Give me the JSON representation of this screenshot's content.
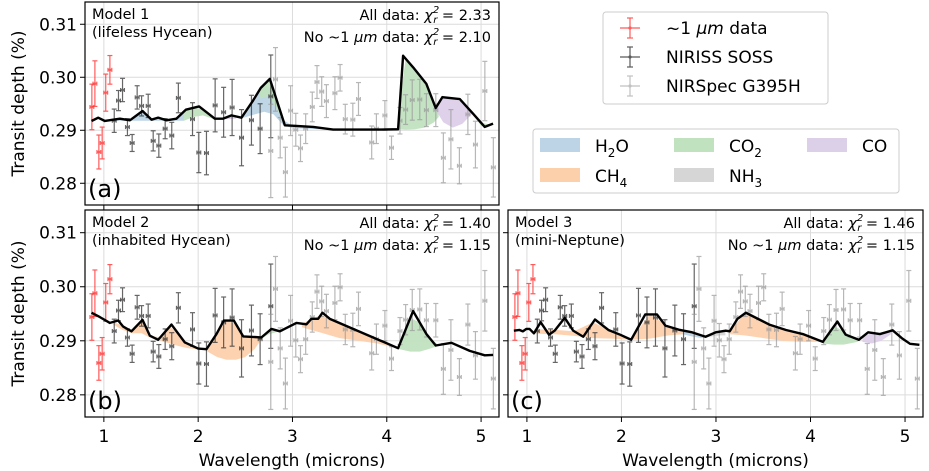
{
  "chart_data": {
    "type": "scatter",
    "xlabel": "Wavelength (microns)",
    "ylabel": "Transit depth (%)",
    "xlim": [
      0.8,
      5.19
    ],
    "ylim": [
      0.2759,
      0.3142
    ],
    "xticks": [
      "1",
      "2",
      "3",
      "4",
      "5"
    ],
    "yticks": [
      "0.28",
      "0.29",
      "0.30",
      "0.31"
    ],
    "grid": true,
    "stat_symbol": "χ",
    "stat_sub": "r",
    "stat_sup": "2",
    "stat_eq": " = ",
    "stat_all_prefix": "All data: ",
    "stat_no1_prefix": "No ~1 ",
    "stat_no1_unit": "μm",
    "stat_no1_suffix": " data: ",
    "colors": {
      "one_micron": "#ff3333",
      "niriss": "#333333",
      "nirspec": "#999999",
      "model": "#000000",
      "H2O": "#bcd4e6",
      "CH4": "#fdd0ac",
      "CO2": "#c0e2bf",
      "NH3": "#d6d6d6",
      "CO": "#dccfe8"
    },
    "legend_data": {
      "placement": "top-right",
      "items": [
        {
          "key": "one_micron",
          "label_pre": "~1 ",
          "label_unit": "μm",
          "label_post": " data"
        },
        {
          "key": "niriss",
          "label_pre": "NIRISS SOSS",
          "label_unit": "",
          "label_post": ""
        },
        {
          "key": "nirspec",
          "label_pre": "NIRSpec G395H",
          "label_unit": "",
          "label_post": ""
        }
      ]
    },
    "legend_species": {
      "placement": "right",
      "items": [
        {
          "key": "H2O",
          "base": "H",
          "sub": "2",
          "rest": "O"
        },
        {
          "key": "CO2",
          "base": "CO",
          "sub": "2",
          "rest": ""
        },
        {
          "key": "CO",
          "base": "CO",
          "sub": "",
          "rest": ""
        },
        {
          "key": "CH4",
          "base": "CH",
          "sub": "4",
          "rest": ""
        },
        {
          "key": "NH3",
          "base": "NH",
          "sub": "3",
          "rest": ""
        }
      ]
    },
    "xerr": 0.02,
    "observations": {
      "one_micron": {
        "x": [
          0.873,
          0.905,
          0.947,
          0.982,
          1.02,
          1.064
        ],
        "y": [
          0.2944,
          0.2988,
          0.2859,
          0.2876,
          0.2971,
          0.3014
        ],
        "yerr": [
          0.0043,
          0.0043,
          0.0032,
          0.003,
          0.0035,
          0.0027
        ]
      },
      "niriss": {
        "x": [
          1.11,
          1.155,
          1.198,
          1.25,
          1.3,
          1.353,
          1.4,
          1.47,
          1.523,
          1.583,
          1.65,
          1.72,
          1.79,
          1.94,
          2.007,
          2.088,
          2.18,
          2.27,
          2.36,
          2.46,
          2.565,
          2.657,
          2.77
        ],
        "y": [
          0.2918,
          0.2956,
          0.2976,
          0.2906,
          0.2876,
          0.2962,
          0.2946,
          0.2946,
          0.288,
          0.2871,
          0.2903,
          0.289,
          0.2961,
          0.2921,
          0.2858,
          0.2857,
          0.2947,
          0.2934,
          0.2943,
          0.2886,
          0.2919,
          0.2903,
          0.2964
        ],
        "yerr": [
          0.0022,
          0.0019,
          0.0022,
          0.0016,
          0.0016,
          0.0022,
          0.0019,
          0.0022,
          0.0019,
          0.0022,
          0.0019,
          0.0025,
          0.0028,
          0.0031,
          0.0038,
          0.0041,
          0.005,
          0.0047,
          0.0053,
          0.0053,
          0.0047,
          0.0047,
          0.0078
        ]
      },
      "nirspec": {
        "x": [
          2.77,
          2.82,
          2.87,
          2.925,
          2.98,
          3.035,
          3.085,
          3.14,
          3.21,
          3.26,
          3.31,
          3.36,
          3.45,
          3.505,
          3.56,
          3.64,
          3.7,
          3.84,
          3.89,
          3.98,
          4.05,
          4.14,
          4.2,
          4.27,
          4.35,
          4.42,
          4.52,
          4.6,
          4.68,
          4.77,
          4.86,
          4.94,
          5.04,
          5.13
        ],
        "y": [
          0.2861,
          0.2996,
          0.2886,
          0.2821,
          0.2937,
          0.2901,
          0.2866,
          0.2903,
          0.2944,
          0.2991,
          0.2973,
          0.2955,
          0.297,
          0.2999,
          0.2921,
          0.292,
          0.2959,
          0.2877,
          0.2903,
          0.2928,
          0.2867,
          0.2918,
          0.2939,
          0.2957,
          0.2958,
          0.2938,
          0.2938,
          0.2848,
          0.2883,
          0.2833,
          0.293,
          0.2873,
          0.2974,
          0.283
        ],
        "yerr": [
          0.0088,
          0.006,
          0.0038,
          0.0047,
          0.0047,
          0.0031,
          0.0025,
          0.0028,
          0.0028,
          0.0031,
          0.0028,
          0.0031,
          0.0031,
          0.0025,
          0.0028,
          0.0031,
          0.0031,
          0.0031,
          0.0028,
          0.0028,
          0.0022,
          0.0025,
          0.0028,
          0.0038,
          0.0038,
          0.0031,
          0.0031,
          0.0047,
          0.0056,
          0.0034,
          0.0038,
          0.0044,
          0.0056,
          0.0056
        ]
      }
    },
    "panels": [
      {
        "letter": "(a)",
        "title": "Model 1",
        "subtitle": "(lifeless Hycean)",
        "chi_all": "2.33",
        "chi_no1": "2.10",
        "model": {
          "x": [
            0.869,
            0.94,
            1.011,
            1.099,
            1.17,
            1.276,
            1.41,
            1.505,
            1.576,
            1.664,
            1.77,
            1.869,
            2.01,
            2.177,
            2.265,
            2.353,
            2.459,
            2.583,
            2.664,
            2.76,
            2.919,
            3.042,
            3.219,
            3.431,
            3.749,
            3.926,
            4.12,
            4.173,
            4.279,
            4.42,
            4.519,
            4.59,
            4.774,
            4.915,
            5.039,
            5.127
          ],
          "y": [
            0.29175,
            0.29238,
            0.29175,
            0.292,
            0.29219,
            0.29188,
            0.29363,
            0.292,
            0.29238,
            0.29188,
            0.29219,
            0.29388,
            0.2945,
            0.29219,
            0.29219,
            0.29281,
            0.29238,
            0.29563,
            0.298,
            0.29969,
            0.29094,
            0.29081,
            0.29063,
            0.29013,
            0.29013,
            0.29013,
            0.29019,
            0.30406,
            0.30188,
            0.29875,
            0.29419,
            0.29625,
            0.29588,
            0.29313,
            0.29063,
            0.29125
          ]
        },
        "fills": [
          {
            "species": "H2O",
            "x": [
              1.08,
              1.2,
              1.3,
              1.41,
              1.5,
              1.6,
              1.75,
              1.85
            ],
            "lower": [
              0.2918,
              0.2918,
              0.2918,
              0.2918,
              0.2918,
              0.2918,
              0.2918,
              0.2918
            ]
          },
          {
            "species": "CO2",
            "x": [
              1.85,
              1.95,
              2.05,
              2.15,
              2.2
            ],
            "lower": [
              0.2918,
              0.2925,
              0.2928,
              0.2922,
              0.2921
            ]
          },
          {
            "species": "CO",
            "x": [
              2.25,
              2.32,
              2.4
            ],
            "lower": [
              0.2921,
              0.2921,
              0.2922
            ]
          },
          {
            "species": "H2O",
            "x": [
              2.45,
              2.6,
              2.7,
              2.8,
              2.9,
              3.0,
              3.3
            ],
            "lower": [
              0.2922,
              0.293,
              0.2935,
              0.293,
              0.291,
              0.2904,
              0.2902
            ]
          },
          {
            "species": "CO2",
            "x": [
              2.65,
              2.75,
              2.85,
              2.92
            ],
            "lower": [
              0.296,
              0.2965,
              0.2935,
              0.291
            ]
          },
          {
            "species": "CO2",
            "x": [
              4.14,
              4.2,
              4.3,
              4.4,
              4.5,
              4.55
            ],
            "lower": [
              0.2902,
              0.2901,
              0.2902,
              0.2905,
              0.2915,
              0.2925
            ]
          },
          {
            "species": "CO",
            "x": [
              4.52,
              4.6,
              4.7,
              4.8,
              4.9
            ],
            "lower": [
              0.2938,
              0.2915,
              0.2905,
              0.2912,
              0.293
            ]
          },
          {
            "species": "CO2",
            "x": [
              4.92,
              5.0,
              5.1
            ],
            "lower": [
              0.2929,
              0.2908,
              0.2908
            ]
          }
        ]
      },
      {
        "letter": "(b)",
        "title": "Model 2",
        "subtitle": "(inhabited Hycean)",
        "chi_all": "1.40",
        "chi_no1": "1.15",
        "model": {
          "x": [
            0.869,
            0.958,
            1.064,
            1.152,
            1.205,
            1.293,
            1.41,
            1.488,
            1.576,
            1.717,
            1.859,
            2.0,
            2.088,
            2.194,
            2.272,
            2.378,
            2.477,
            2.671,
            2.777,
            2.866,
            3.042,
            3.148,
            3.201,
            3.272,
            3.318,
            3.396,
            4.12,
            4.279,
            4.42,
            4.519,
            4.686,
            4.88,
            5.039,
            5.127
          ],
          "y": [
            0.29519,
            0.29438,
            0.29331,
            0.29375,
            0.29263,
            0.29175,
            0.29388,
            0.29094,
            0.29019,
            0.293,
            0.28969,
            0.28856,
            0.28844,
            0.29125,
            0.29375,
            0.29375,
            0.29081,
            0.29063,
            0.29219,
            0.29175,
            0.29331,
            0.29306,
            0.29406,
            0.29406,
            0.29519,
            0.29406,
            0.28863,
            0.2955,
            0.29125,
            0.28913,
            0.28963,
            0.28813,
            0.28731,
            0.28738
          ]
        },
        "fills": [
          {
            "species": "CH4",
            "x": [
              1.1,
              1.2,
              1.3,
              1.4,
              1.5,
              1.6
            ],
            "lower": [
              0.293,
              0.292,
              0.2914,
              0.2914,
              0.2905,
              0.2902
            ]
          },
          {
            "species": "CH4",
            "x": [
              1.6,
              1.7,
              1.8,
              1.9,
              2.0,
              2.1
            ],
            "lower": [
              0.29,
              0.2895,
              0.289,
              0.2886,
              0.2884,
              0.2884
            ]
          },
          {
            "species": "CH4",
            "x": [
              2.1,
              2.2,
              2.3,
              2.4,
              2.5,
              2.6,
              2.68
            ],
            "lower": [
              0.288,
              0.287,
              0.2865,
              0.2865,
              0.287,
              0.2885,
              0.2905
            ]
          },
          {
            "species": "CO2",
            "x": [
              2.68,
              2.75,
              2.85,
              2.9
            ],
            "lower": [
              0.2905,
              0.2912,
              0.2917,
              0.2917
            ]
          },
          {
            "species": "CH4",
            "x": [
              3.1,
              3.2,
              3.3,
              3.5,
              3.7,
              3.9,
              4.12
            ],
            "lower": [
              0.2925,
              0.292,
              0.2915,
              0.2905,
              0.29,
              0.2895,
              0.2886
            ]
          },
          {
            "species": "CO2",
            "x": [
              4.12,
              4.25,
              4.35,
              4.45,
              4.55
            ],
            "lower": [
              0.2885,
              0.288,
              0.288,
              0.2885,
              0.2891
            ]
          }
        ]
      },
      {
        "letter": "(c)",
        "title": "Model 3",
        "subtitle": "(mini-Neptune)",
        "chi_all": "1.46",
        "chi_no1": "1.15",
        "model": {
          "x": [
            0.862,
            0.922,
            0.957,
            0.993,
            1.028,
            1.074,
            1.145,
            1.234,
            1.294,
            1.4,
            1.489,
            1.596,
            1.72,
            1.862,
            1.986,
            2.103,
            2.252,
            2.376,
            2.465,
            2.606,
            2.748,
            2.89,
            2.996,
            3.103,
            3.145,
            3.227,
            3.316,
            3.564,
            3.741,
            3.918,
            4.131,
            4.284,
            4.372,
            4.511,
            4.61,
            4.734,
            4.869,
            4.965,
            5.053,
            5.152
          ],
          "y": [
            0.29188,
            0.292,
            0.29175,
            0.29219,
            0.29219,
            0.29138,
            0.29344,
            0.29113,
            0.29188,
            0.29425,
            0.29188,
            0.29075,
            0.29394,
            0.292,
            0.29113,
            0.29019,
            0.29488,
            0.29488,
            0.29281,
            0.29206,
            0.29156,
            0.29075,
            0.29156,
            0.29188,
            0.29175,
            0.29406,
            0.29519,
            0.293,
            0.292,
            0.29125,
            0.28981,
            0.29356,
            0.29113,
            0.29019,
            0.29156,
            0.29125,
            0.29194,
            0.2905,
            0.28944,
            0.28925
          ]
        },
        "fills": [
          {
            "species": "CH4",
            "x": [
              1.1,
              1.3,
              1.5,
              1.7,
              1.9,
              2.1,
              2.3,
              2.5,
              2.65
            ],
            "lower": [
              0.2913,
              0.2912,
              0.2909,
              0.2905,
              0.2904,
              0.2902,
              0.2904,
              0.291,
              0.2912
            ]
          },
          {
            "species": "H2O",
            "x": [
              2.65,
              2.75,
              2.85
            ],
            "lower": [
              0.2912,
              0.2908,
              0.2905
            ]
          },
          {
            "species": "NH3",
            "x": [
              2.85,
              2.95,
              3.05,
              3.1
            ],
            "lower": [
              0.2905,
              0.2908,
              0.291,
              0.291
            ]
          },
          {
            "species": "CH4",
            "x": [
              3.15,
              3.3,
              3.5,
              3.7,
              3.9,
              4.13
            ],
            "lower": [
              0.2912,
              0.291,
              0.2905,
              0.29,
              0.2898,
              0.2898
            ]
          },
          {
            "species": "CO2",
            "x": [
              4.13,
              4.25,
              4.35,
              4.5
            ],
            "lower": [
              0.2895,
              0.2893,
              0.2893,
              0.2898
            ]
          },
          {
            "species": "CO",
            "x": [
              4.55,
              4.65,
              4.75,
              4.85
            ],
            "lower": [
              0.2898,
              0.2895,
              0.29,
              0.2912
            ]
          }
        ]
      }
    ]
  }
}
